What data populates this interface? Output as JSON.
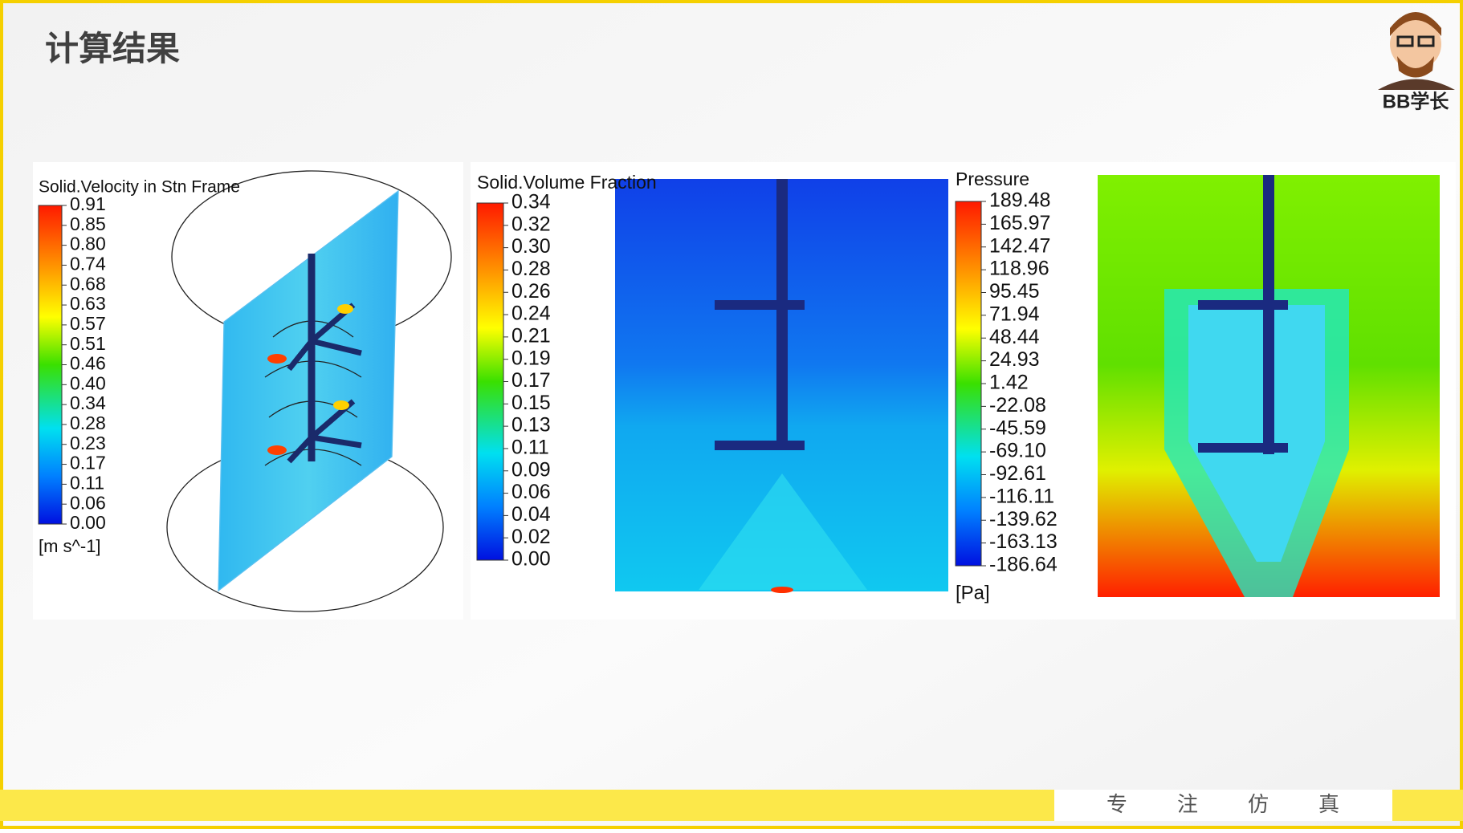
{
  "header": {
    "title": "计算结果",
    "logo": "BB学长"
  },
  "panels": [
    {
      "title": "Solid.Velocity in Stn Frame",
      "legend": [
        "0.91",
        "0.85",
        "0.80",
        "0.74",
        "0.68",
        "0.63",
        "0.57",
        "0.51",
        "0.46",
        "0.40",
        "0.34",
        "0.28",
        "0.23",
        "0.17",
        "0.11",
        "0.06",
        "0.00"
      ],
      "unit": "[m s^-1]"
    },
    {
      "title": "Solid.Volume Fraction",
      "legend": [
        "0.34",
        "0.32",
        "0.30",
        "0.28",
        "0.26",
        "0.24",
        "0.21",
        "0.19",
        "0.17",
        "0.15",
        "0.13",
        "0.11",
        "0.09",
        "0.06",
        "0.04",
        "0.02",
        "0.00"
      ]
    },
    {
      "title": "Pressure",
      "legend": [
        "189.48",
        "165.97",
        "142.47",
        "118.96",
        "95.45",
        "71.94",
        "48.44",
        "24.93",
        "1.42",
        "-22.08",
        "-45.59",
        "-69.10",
        "-92.61",
        "-116.11",
        "-139.62",
        "-163.13",
        "-186.64"
      ],
      "unit": "[Pa]"
    }
  ],
  "footer": {
    "slogan": [
      "专",
      "注",
      "仿",
      "真"
    ]
  }
}
